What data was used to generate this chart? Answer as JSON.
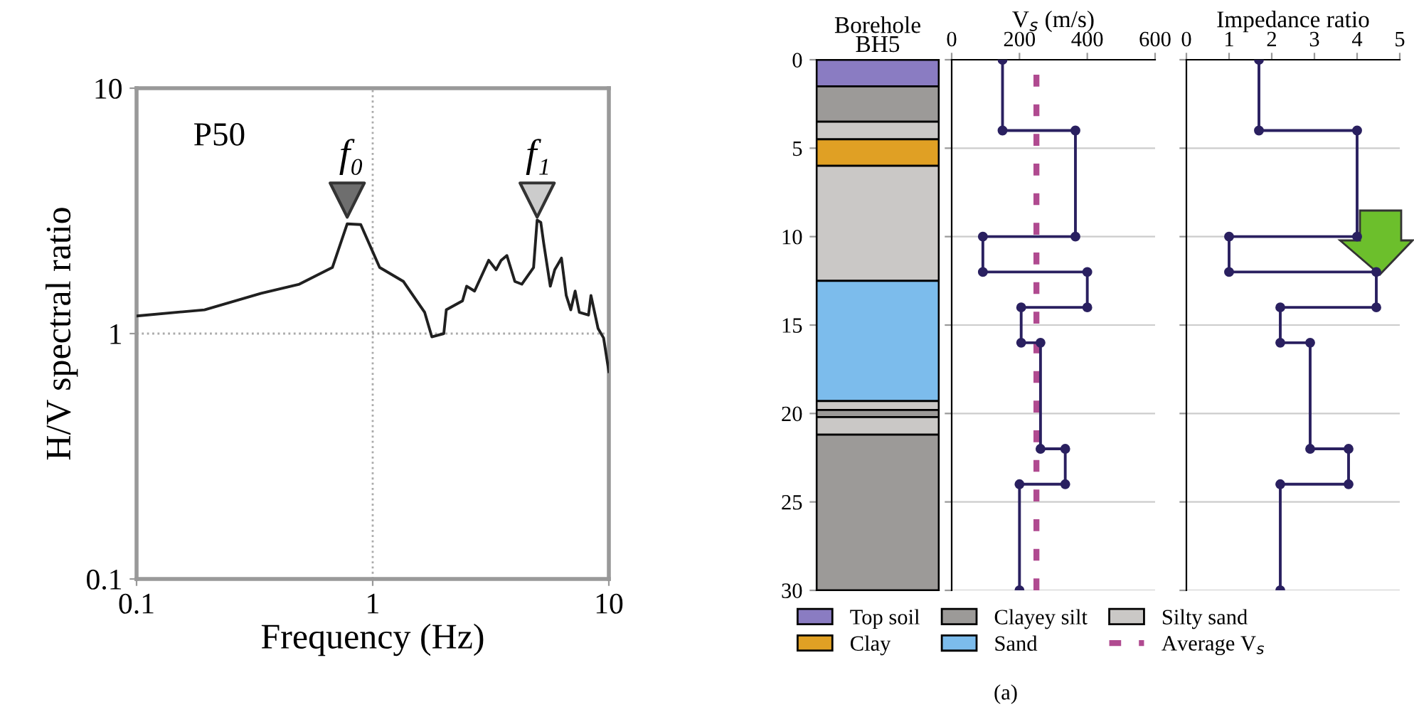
{
  "chart_data": [
    {
      "type": "line",
      "xlabel": "Frequency (Hz)",
      "ylabel": "H/V spectral ratio",
      "log": "xy",
      "xlim": [
        0.1,
        10
      ],
      "ylim": [
        0.1,
        10
      ],
      "xticks": [
        0.1,
        1,
        10
      ],
      "yticks": [
        0.1,
        1,
        10
      ],
      "grid": true,
      "annotations": [
        "P50",
        "f₀",
        "f₁"
      ],
      "series": [
        {
          "color": "#202020",
          "marker": "none",
          "x": [
            0.1,
            0.194,
            0.337,
            0.489,
            0.675,
            0.78,
            0.89,
            1.07,
            1.35,
            1.66,
            1.78,
            2.0,
            2.05,
            2.4,
            2.5,
            2.7,
            3.1,
            3.33,
            3.5,
            3.7,
            4.0,
            4.28,
            4.8,
            4.97,
            5.15,
            5.3,
            5.65,
            5.9,
            6.3,
            6.6,
            6.9,
            7.2,
            7.5,
            8.2,
            8.4,
            9.0,
            9.5,
            10
          ],
          "values": [
            1.18,
            1.25,
            1.46,
            1.59,
            1.86,
            2.8,
            2.78,
            1.86,
            1.63,
            1.22,
            0.97,
            1.0,
            1.25,
            1.36,
            1.56,
            1.49,
            1.99,
            1.82,
            1.99,
            2.08,
            1.63,
            1.59,
            1.86,
            2.9,
            2.84,
            2.33,
            1.56,
            1.82,
            2.03,
            1.43,
            1.25,
            1.49,
            1.22,
            1.19,
            1.43,
            1.05,
            0.96,
            0.7
          ]
        },
        {
          "type": "scatter",
          "marker": "triangle",
          "colors": [
            "#6e6e6e",
            "#cccccc"
          ],
          "x": [
            0.78,
            4.97
          ],
          "values": [
            3.5,
            3.5
          ]
        }
      ]
    },
    {
      "type": "bar",
      "title": "Borehole\nBH5",
      "stacked": true,
      "categories": [
        null
      ],
      "ylim": [
        30,
        0
      ],
      "yticks": [
        0,
        5,
        10,
        15,
        20,
        25,
        30
      ],
      "tick_labels": "y",
      "legend": "bottom",
      "series": [
        {
          "name": "Top soil",
          "color": "#8a7cc2",
          "values": [
            1.5
          ]
        },
        {
          "name": "Clayey silt",
          "color": "#9c9a98",
          "values": [
            2.0
          ]
        },
        {
          "name": "Silty sand",
          "color": "#cac8c6",
          "values": [
            1.0
          ]
        },
        {
          "name": "Clay",
          "color": "#e0a024",
          "values": [
            1.5
          ]
        },
        {
          "color": "#cac8c6",
          "values": [
            6.5
          ]
        },
        {
          "name": "Sand",
          "color": "#7cbcec",
          "values": [
            6.8
          ]
        },
        {
          "color": "#cac8c6",
          "values": [
            0.5
          ]
        },
        {
          "color": "#9c9a98",
          "values": [
            0.4
          ]
        },
        {
          "color": "#cac8c6",
          "values": [
            1.0
          ]
        },
        {
          "color": "#9c9a98",
          "values": [
            8.8
          ]
        }
      ]
    },
    {
      "type": "line",
      "xlabel": "V$_{s}$ (m/s)",
      "xlim": [
        0,
        600
      ],
      "xticks": [
        0,
        200,
        400,
        600
      ],
      "ylim": [
        30,
        0
      ],
      "yticks": [
        0,
        5,
        10,
        15,
        20,
        25,
        30
      ],
      "tick_labels": "x",
      "grid": "y",
      "marker": "circle",
      "legend": "bottom",
      "ref_lines": [
        {
          "axis": "x",
          "value": 250,
          "label": "Average V$_{s}$",
          "color": "#b04a90",
          "line_style": "dashed"
        }
      ],
      "annotations": [
        "(a)"
      ],
      "series": [
        {
          "color": "#2a2060",
          "x": [
            150,
            150,
            365,
            365,
            92,
            92,
            400,
            400,
            205,
            205,
            262,
            262,
            335,
            335,
            200,
            200
          ],
          "values": [
            0,
            4,
            4,
            10,
            10,
            12,
            12,
            14,
            14,
            16,
            16,
            22,
            22,
            24,
            24,
            30
          ]
        }
      ]
    },
    {
      "type": "line",
      "xlabel": "Impedance ratio",
      "xlim": [
        0,
        5
      ],
      "xticks": [
        0,
        1,
        2,
        3,
        4,
        5
      ],
      "ylim": [
        30,
        0
      ],
      "yticks": [
        0,
        5,
        10,
        15,
        20,
        25,
        30
      ],
      "tick_labels": "x",
      "grid": "y",
      "marker": "circle",
      "series": [
        {
          "color": "#2a2060",
          "x": [
            1.7,
            1.7,
            4.0,
            4.0,
            1.0,
            1.0,
            4.45,
            4.45,
            2.2,
            2.2,
            2.9,
            2.9,
            3.8,
            3.8,
            2.2,
            2.2
          ],
          "values": [
            0,
            4,
            4,
            10,
            10,
            12,
            12,
            14,
            14,
            16,
            16,
            22,
            22,
            24,
            24,
            30
          ]
        }
      ]
    }
  ]
}
